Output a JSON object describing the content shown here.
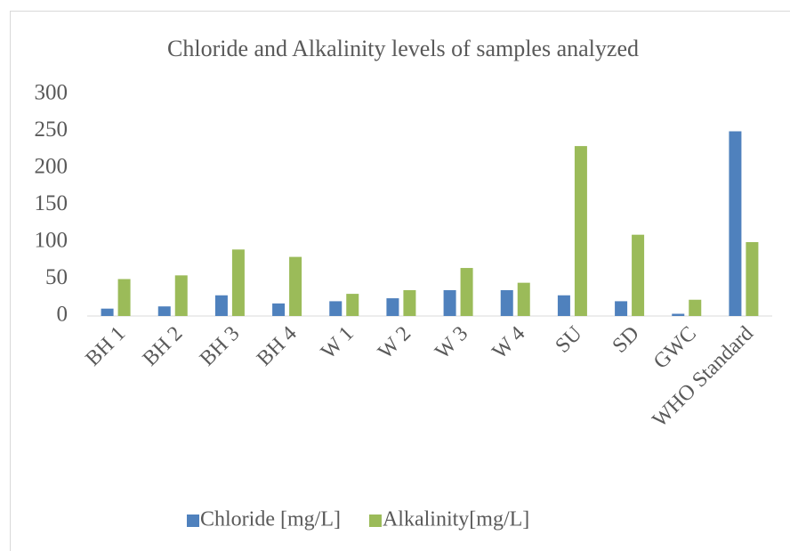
{
  "chart_data": {
    "type": "bar",
    "title": "Chloride and Alkalinity levels of samples analyzed",
    "categories": [
      "BH 1",
      "BH 2",
      "BH 3",
      "BH 4",
      "W 1",
      "W 2",
      "W 3",
      "W 4",
      "SU",
      "SD",
      "GWC",
      "WHO Standard"
    ],
    "series": [
      {
        "name": "Chloride [mg/L]",
        "color": "#4f81bd",
        "values": [
          10,
          13,
          28,
          17,
          20,
          24,
          35,
          35,
          28,
          20,
          3,
          250
        ]
      },
      {
        "name": "Alkalinity[mg/L]",
        "color": "#9bbb59",
        "values": [
          50,
          55,
          90,
          80,
          30,
          35,
          65,
          45,
          230,
          110,
          22,
          100
        ]
      }
    ],
    "ylim": [
      0,
      300
    ],
    "yticks": [
      0,
      50,
      100,
      150,
      200,
      250,
      300
    ],
    "grid": false,
    "legend": "bottom"
  }
}
